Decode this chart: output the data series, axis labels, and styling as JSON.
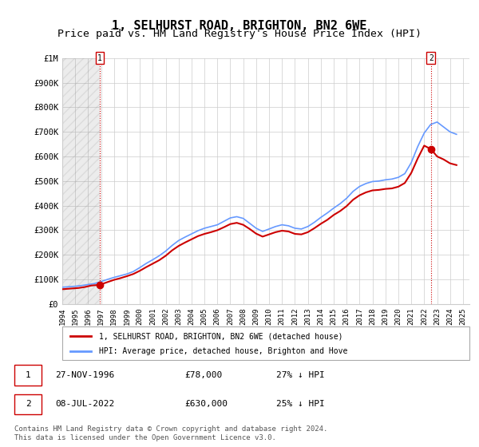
{
  "title": "1, SELHURST ROAD, BRIGHTON, BN2 6WE",
  "subtitle": "Price paid vs. HM Land Registry's House Price Index (HPI)",
  "title_fontsize": 11,
  "subtitle_fontsize": 9.5,
  "ylabel_ticks": [
    "£0",
    "£100K",
    "£200K",
    "£300K",
    "£400K",
    "£500K",
    "£600K",
    "£700K",
    "£800K",
    "£900K",
    "£1M"
  ],
  "ytick_values": [
    0,
    100000,
    200000,
    300000,
    400000,
    500000,
    600000,
    700000,
    800000,
    900000,
    1000000
  ],
  "ylim": [
    0,
    1000000
  ],
  "xlim_start": 1994.0,
  "xlim_end": 2025.5,
  "xtick_years": [
    1994,
    1995,
    1996,
    1997,
    1998,
    1999,
    2000,
    2001,
    2002,
    2003,
    2004,
    2005,
    2006,
    2007,
    2008,
    2009,
    2010,
    2011,
    2012,
    2013,
    2014,
    2015,
    2016,
    2017,
    2018,
    2019,
    2020,
    2021,
    2022,
    2023,
    2024,
    2025
  ],
  "hpi_color": "#6699ff",
  "price_color": "#cc0000",
  "vline_color": "#cc0000",
  "vline_style": ":",
  "grid_color": "#cccccc",
  "bg_color": "#ffffff",
  "sale1_year": 1996.91,
  "sale1_price": 78000,
  "sale1_label": "1",
  "sale2_year": 2022.52,
  "sale2_price": 630000,
  "sale2_label": "2",
  "legend_label_red": "1, SELHURST ROAD, BRIGHTON, BN2 6WE (detached house)",
  "legend_label_blue": "HPI: Average price, detached house, Brighton and Hove",
  "table_row1": "1    27-NOV-1996         £78,000        27% ↓ HPI",
  "table_row2": "2    08-JUL-2022         £630,000      25% ↓ HPI",
  "footnote": "Contains HM Land Registry data © Crown copyright and database right 2024.\nThis data is licensed under the Open Government Licence v3.0.",
  "hpi_x": [
    1994.0,
    1994.5,
    1995.0,
    1995.5,
    1996.0,
    1996.5,
    1997.0,
    1997.5,
    1998.0,
    1998.5,
    1999.0,
    1999.5,
    2000.0,
    2000.5,
    2001.0,
    2001.5,
    2002.0,
    2002.5,
    2003.0,
    2003.5,
    2004.0,
    2004.5,
    2005.0,
    2005.5,
    2006.0,
    2006.5,
    2007.0,
    2007.5,
    2008.0,
    2008.5,
    2009.0,
    2009.5,
    2010.0,
    2010.5,
    2011.0,
    2011.5,
    2012.0,
    2012.5,
    2013.0,
    2013.5,
    2014.0,
    2014.5,
    2015.0,
    2015.5,
    2016.0,
    2016.5,
    2017.0,
    2017.5,
    2018.0,
    2018.5,
    2019.0,
    2019.5,
    2020.0,
    2020.5,
    2021.0,
    2021.5,
    2022.0,
    2022.5,
    2023.0,
    2023.5,
    2024.0,
    2024.5
  ],
  "hpi_y": [
    68000,
    70000,
    72000,
    75000,
    79000,
    83000,
    91000,
    100000,
    108000,
    115000,
    122000,
    132000,
    148000,
    165000,
    180000,
    196000,
    215000,
    238000,
    258000,
    272000,
    285000,
    298000,
    308000,
    315000,
    322000,
    336000,
    350000,
    355000,
    348000,
    328000,
    308000,
    295000,
    305000,
    315000,
    322000,
    318000,
    308000,
    305000,
    315000,
    332000,
    352000,
    370000,
    390000,
    408000,
    430000,
    458000,
    478000,
    490000,
    498000,
    500000,
    505000,
    508000,
    515000,
    530000,
    575000,
    640000,
    695000,
    730000,
    740000,
    720000,
    700000,
    690000
  ],
  "price_x": [
    1994.0,
    1994.25,
    1994.5,
    1994.75,
    1995.0,
    1995.25,
    1995.5,
    1995.75,
    1996.0,
    1996.25,
    1996.91,
    1997.5,
    1998.0,
    1998.5,
    1999.0,
    1999.5,
    2000.0,
    2000.5,
    2001.0,
    2001.5,
    2002.0,
    2002.5,
    2003.0,
    2003.5,
    2004.0,
    2004.5,
    2005.0,
    2005.5,
    2006.0,
    2006.5,
    2007.0,
    2007.5,
    2008.0,
    2008.5,
    2009.0,
    2009.5,
    2010.0,
    2010.5,
    2011.0,
    2011.5,
    2012.0,
    2012.5,
    2013.0,
    2013.5,
    2014.0,
    2014.5,
    2015.0,
    2015.5,
    2016.0,
    2016.5,
    2017.0,
    2017.5,
    2018.0,
    2018.5,
    2019.0,
    2019.5,
    2020.0,
    2020.5,
    2021.0,
    2021.5,
    2022.0,
    2022.52,
    2023.0,
    2023.5,
    2024.0,
    2024.5
  ],
  "price_y": [
    60000,
    61000,
    62000,
    63000,
    64000,
    65000,
    67000,
    69000,
    72000,
    75000,
    78000,
    89000,
    98000,
    105000,
    113000,
    122000,
    135000,
    150000,
    164000,
    178000,
    196000,
    218000,
    236000,
    250000,
    263000,
    276000,
    285000,
    292000,
    300000,
    312000,
    325000,
    330000,
    322000,
    305000,
    286000,
    274000,
    283000,
    292000,
    298000,
    295000,
    285000,
    283000,
    292000,
    308000,
    326000,
    342000,
    362000,
    378000,
    398000,
    424000,
    442000,
    454000,
    462000,
    464000,
    468000,
    470000,
    477000,
    492000,
    533000,
    592000,
    644000,
    630000,
    600000,
    588000,
    572000,
    565000
  ]
}
